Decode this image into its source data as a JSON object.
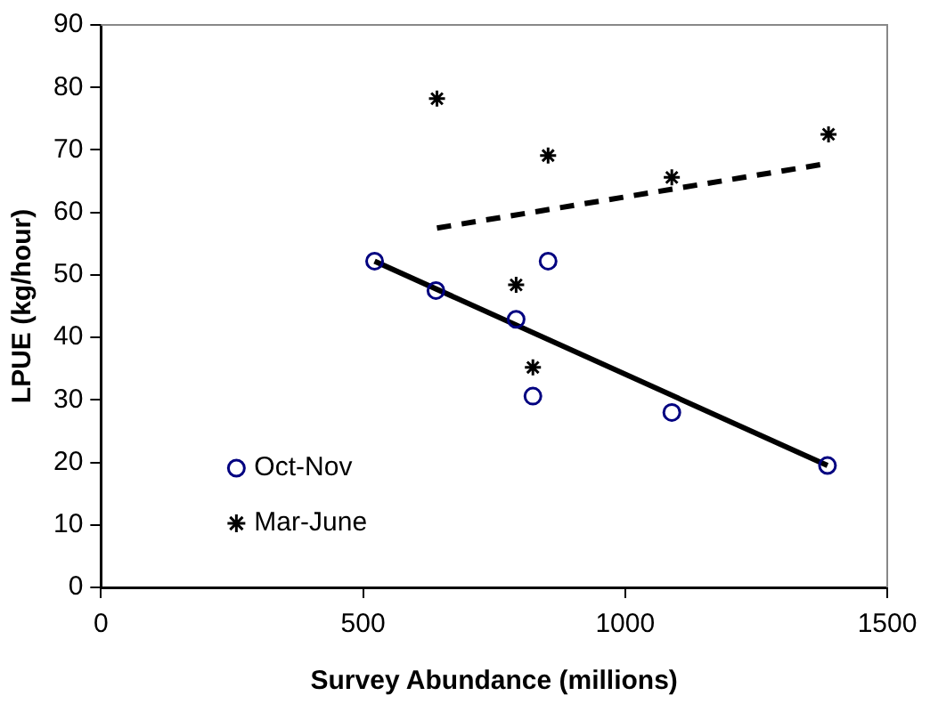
{
  "chart_data": {
    "type": "scatter",
    "xlabel": "Survey Abundance (millions)",
    "ylabel": "LPUE (kg/hour)",
    "xlim": [
      0,
      1500
    ],
    "xticks": [
      0,
      500,
      1000,
      1500
    ],
    "ylim": [
      0,
      90
    ],
    "yticks": [
      0,
      10,
      20,
      30,
      40,
      50,
      60,
      70,
      80,
      90
    ],
    "grid": false,
    "legend": "bottom left",
    "series": [
      {
        "name": "Oct-Nov",
        "color": "#000080",
        "marker": "circle",
        "x": [
          522,
          639,
          792,
          853,
          824,
          1089,
          1386
        ],
        "values": [
          52.2,
          47.5,
          42.9,
          52.2,
          30.6,
          28.0,
          19.5
        ]
      },
      {
        "name": "Mar-June",
        "color": "#000000",
        "marker": "cross",
        "x": [
          641,
          853,
          1089,
          1388,
          792,
          824
        ],
        "values": [
          78.2,
          69.1,
          65.6,
          72.5,
          48.4,
          35.2
        ]
      },
      {
        "type": "line",
        "color": "#000000",
        "line_style": "solid",
        "marker": "none",
        "x": [
          522,
          1386
        ],
        "values": [
          52.2,
          19.5
        ]
      },
      {
        "type": "line",
        "color": "#000000",
        "line_style": "dashed",
        "marker": "none",
        "x": [
          641,
          1384
        ],
        "values": [
          57.5,
          67.8
        ]
      }
    ]
  }
}
